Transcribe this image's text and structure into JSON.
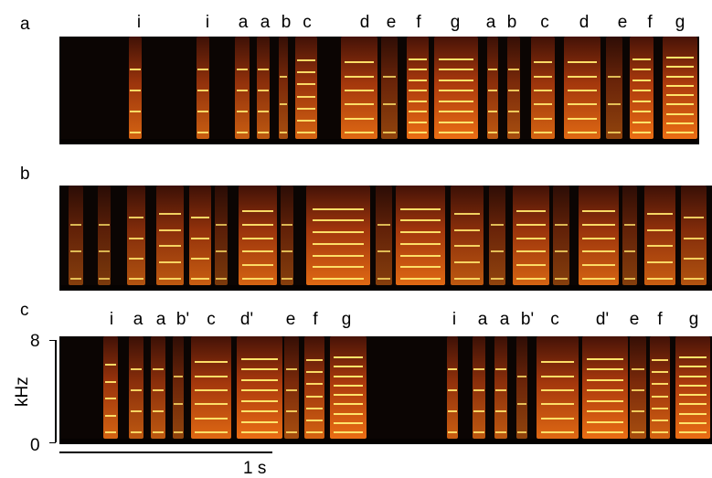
{
  "panels": [
    {
      "letter": "a",
      "syllables": [
        "i",
        "i",
        "a",
        "a",
        "b",
        "c",
        "d",
        "e",
        "f",
        "g",
        "a",
        "b",
        "c",
        "d",
        "e",
        "f",
        "g"
      ]
    },
    {
      "letter": "b",
      "syllables": []
    },
    {
      "letter": "c",
      "syllables": [
        "i",
        "a",
        "a",
        "b'",
        "c",
        "d'",
        "e",
        "f",
        "g",
        "i",
        "a",
        "a",
        "b'",
        "c",
        "d'",
        "e",
        "f",
        "g"
      ]
    }
  ],
  "y_axis": {
    "label": "kHz",
    "max_label": "8",
    "min_label": "0"
  },
  "scale_bar": {
    "label": "1 s"
  }
}
